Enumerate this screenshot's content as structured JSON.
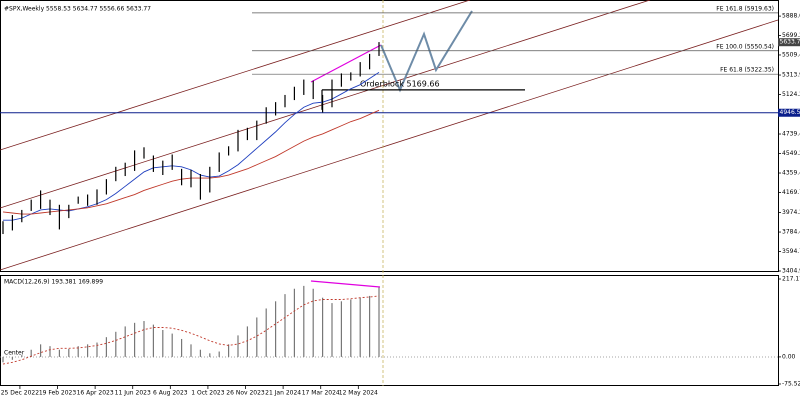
{
  "chart_data": {
    "type": "range-bar",
    "title": "#SPX,Weekly  5558.53 5634.77 5556.66 5633.77",
    "bar_color": "#000000",
    "ylim": [
      3404.95,
      5967
    ],
    "yticks": [
      5888.06,
      5699.2,
      5509.45,
      5313.95,
      5124.2,
      4739.45,
      4549.2,
      4359.45,
      4169.7,
      3974.2,
      3784.45,
      3594.7,
      3404.95
    ],
    "x_labels": [
      "25 Dec 2022",
      "19 Feb 2023",
      "16 Apr 2023",
      "11 Jun 2023",
      "6 Aug 2023",
      "1 Oct 2023",
      "26 Nov 2023",
      "21 Jan 2024",
      "17 Mar 2024",
      "12 May 2024"
    ],
    "high": [
      3890,
      3950,
      4000,
      4100,
      4190,
      4100,
      4050,
      4050,
      4130,
      4150,
      4200,
      4300,
      4420,
      4460,
      4580,
      4610,
      4530,
      4480,
      4540,
      4400,
      4390,
      4350,
      4420,
      4560,
      4620,
      4780,
      4800,
      4870,
      5000,
      5050,
      5120,
      5200,
      5270,
      5260,
      5120,
      5270,
      5330,
      5340,
      5440,
      5520,
      5634.77
    ],
    "low": [
      3765,
      3800,
      3880,
      3990,
      4010,
      3950,
      3810,
      3920,
      4060,
      4040,
      4050,
      4150,
      4280,
      4330,
      4380,
      4500,
      4370,
      4340,
      4390,
      4240,
      4220,
      4100,
      4170,
      4370,
      4530,
      4570,
      4680,
      4680,
      4840,
      4920,
      5000,
      5070,
      5120,
      5080,
      4950,
      5000,
      5200,
      5260,
      5300,
      5370,
      5500
    ],
    "ma_lines": [
      {
        "color": "#1f3fbf",
        "values": [
          3900,
          3900,
          3920,
          3960,
          4000,
          4010,
          4000,
          3990,
          4010,
          4030,
          4060,
          4100,
          4160,
          4230,
          4300,
          4370,
          4410,
          4420,
          4430,
          4420,
          4390,
          4340,
          4320,
          4330,
          4380,
          4440,
          4520,
          4600,
          4680,
          4760,
          4850,
          4930,
          5000,
          5040,
          5050,
          5080,
          5130,
          5180,
          5220,
          5280,
          5340
        ]
      },
      {
        "color": "#c0392b",
        "values": [
          3980,
          3970,
          3960,
          3960,
          3970,
          3980,
          3990,
          4000,
          4010,
          4020,
          4040,
          4060,
          4090,
          4120,
          4150,
          4190,
          4220,
          4250,
          4280,
          4300,
          4310,
          4310,
          4310,
          4320,
          4340,
          4370,
          4400,
          4440,
          4480,
          4520,
          4570,
          4620,
          4670,
          4710,
          4740,
          4780,
          4820,
          4860,
          4890,
          4930,
          4970
        ]
      }
    ],
    "fib_levels": [
      {
        "value": 5919.63,
        "label": "FE 161.8 (5919.63)"
      },
      {
        "value": 5550.54,
        "label": "FE 100.0 (5550.54)"
      },
      {
        "value": 5322.35,
        "label": "FE 61.8 (5322.35)"
      }
    ],
    "orderblock": {
      "value": 5169.66,
      "label": "Orderblock 5169.66"
    },
    "support_line": {
      "value": 4946.59,
      "color": "#0b1f8c"
    },
    "current_price": 5633.77,
    "indicator": {
      "type": "bar",
      "title": "MACD(12,26,9) 193.381 169.899",
      "center_label": "Center",
      "ylim": [
        -75.529,
        217.177
      ],
      "yticks": [
        217.177,
        {
          "value": 0,
          "label": "0.00"
        },
        -75.529
      ],
      "histogram": [
        -15,
        -8,
        5,
        20,
        35,
        30,
        20,
        22,
        30,
        35,
        40,
        55,
        70,
        85,
        95,
        100,
        90,
        75,
        65,
        50,
        35,
        20,
        10,
        15,
        35,
        60,
        85,
        110,
        135,
        155,
        175,
        190,
        198,
        190,
        165,
        150,
        155,
        160,
        165,
        170,
        193.381
      ],
      "signal": [
        -20,
        -15,
        -8,
        2,
        12,
        20,
        24,
        24,
        25,
        28,
        32,
        38,
        46,
        56,
        66,
        76,
        82,
        82,
        80,
        74,
        66,
        56,
        45,
        36,
        32,
        36,
        45,
        58,
        74,
        92,
        110,
        128,
        145,
        156,
        160,
        160,
        160,
        162,
        165,
        167,
        169.899
      ],
      "signal_color": "#c0392b"
    }
  }
}
